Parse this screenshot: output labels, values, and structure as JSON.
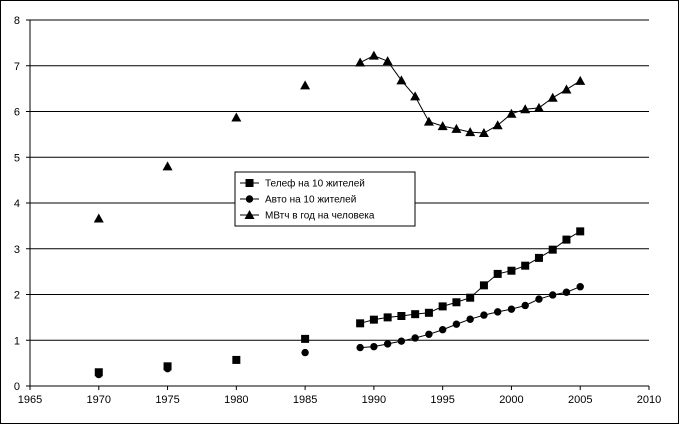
{
  "chart_data": {
    "type": "line",
    "title": "",
    "xlabel": "",
    "ylabel": "",
    "xlim": [
      1965,
      2010
    ],
    "ylim": [
      0,
      8
    ],
    "x_ticks": [
      1965,
      1970,
      1975,
      1980,
      1985,
      1990,
      1995,
      2000,
      2005,
      2010
    ],
    "y_ticks": [
      0,
      1,
      2,
      3,
      4,
      5,
      6,
      7,
      8
    ],
    "grid": "horizontal",
    "legend_position": "center-left",
    "series": [
      {
        "name": "Телеф на 10 жителей",
        "marker": "square",
        "color": "#000000",
        "line_from_year": 1989,
        "points": [
          [
            1970,
            0.3
          ],
          [
            1975,
            0.43
          ],
          [
            1980,
            0.57
          ],
          [
            1985,
            1.03
          ],
          [
            1989,
            1.37
          ],
          [
            1990,
            1.45
          ],
          [
            1991,
            1.5
          ],
          [
            1992,
            1.53
          ],
          [
            1993,
            1.57
          ],
          [
            1994,
            1.6
          ],
          [
            1995,
            1.74
          ],
          [
            1996,
            1.83
          ],
          [
            1997,
            1.93
          ],
          [
            1998,
            2.2
          ],
          [
            1999,
            2.45
          ],
          [
            2000,
            2.52
          ],
          [
            2001,
            2.63
          ],
          [
            2002,
            2.8
          ],
          [
            2003,
            2.98
          ],
          [
            2004,
            3.2
          ],
          [
            2005,
            3.38
          ]
        ]
      },
      {
        "name": "Авто на 10 жителей",
        "marker": "circle",
        "color": "#000000",
        "line_from_year": 1989,
        "points": [
          [
            1970,
            0.25
          ],
          [
            1975,
            0.38
          ],
          [
            1985,
            0.73
          ],
          [
            1989,
            0.84
          ],
          [
            1990,
            0.86
          ],
          [
            1991,
            0.92
          ],
          [
            1992,
            0.98
          ],
          [
            1993,
            1.05
          ],
          [
            1994,
            1.13
          ],
          [
            1995,
            1.23
          ],
          [
            1996,
            1.35
          ],
          [
            1997,
            1.46
          ],
          [
            1998,
            1.55
          ],
          [
            1999,
            1.62
          ],
          [
            2000,
            1.68
          ],
          [
            2001,
            1.76
          ],
          [
            2002,
            1.9
          ],
          [
            2003,
            1.99
          ],
          [
            2004,
            2.05
          ],
          [
            2005,
            2.17
          ]
        ]
      },
      {
        "name": "МВтч в год на человека",
        "marker": "triangle",
        "color": "#000000",
        "line_from_year": 1989,
        "points": [
          [
            1970,
            3.66
          ],
          [
            1975,
            4.8
          ],
          [
            1980,
            5.87
          ],
          [
            1985,
            6.57
          ],
          [
            1989,
            7.07
          ],
          [
            1990,
            7.22
          ],
          [
            1991,
            7.1
          ],
          [
            1992,
            6.68
          ],
          [
            1993,
            6.33
          ],
          [
            1994,
            5.78
          ],
          [
            1995,
            5.68
          ],
          [
            1996,
            5.62
          ],
          [
            1997,
            5.55
          ],
          [
            1998,
            5.53
          ],
          [
            1999,
            5.7
          ],
          [
            2000,
            5.95
          ],
          [
            2001,
            6.05
          ],
          [
            2002,
            6.08
          ],
          [
            2003,
            6.3
          ],
          [
            2004,
            6.48
          ],
          [
            2005,
            6.67
          ]
        ]
      }
    ]
  }
}
